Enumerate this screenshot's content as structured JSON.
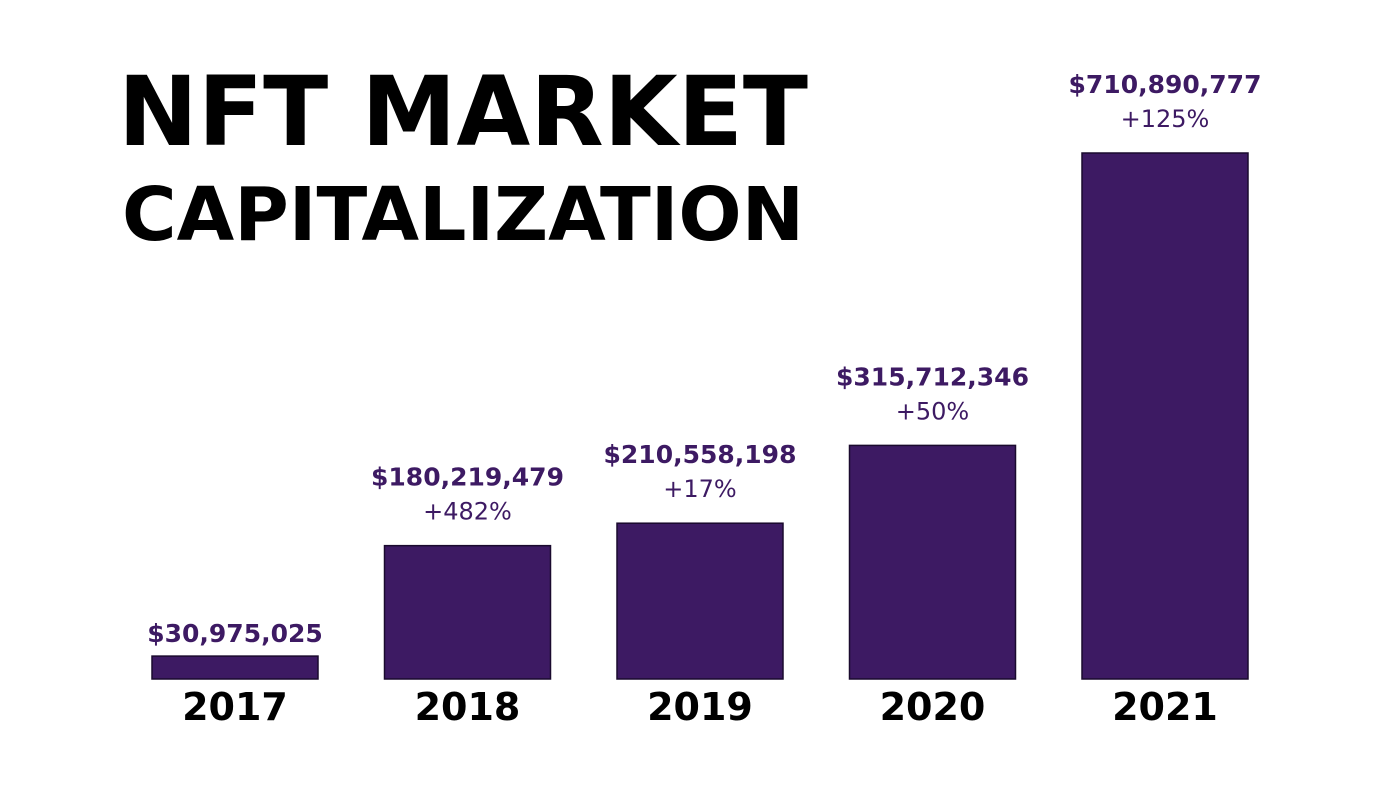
{
  "colors": {
    "bar": "#3d1a63",
    "bar_stroke": "#1a0a2e",
    "value_text": "#3d1a63",
    "change_text": "#3d1a63",
    "title_text": "#000000",
    "background": "#ffffff"
  },
  "chart_data": {
    "type": "bar",
    "title": "NFT MARKET",
    "subtitle": "CAPITALIZATION",
    "xlabel": "",
    "ylabel": "",
    "categories": [
      "2017",
      "2018",
      "2019",
      "2020",
      "2021"
    ],
    "values": [
      30975025,
      180219479,
      210558198,
      315712346,
      710890777
    ],
    "value_labels": [
      "$30,975,025",
      "$180,219,479",
      "$210,558,198",
      "$315,712,346",
      "$710,890,777"
    ],
    "change_labels": [
      "",
      "+482%",
      "+17%",
      "+50%",
      "+125%"
    ],
    "ylim": [
      0,
      710890777
    ],
    "grid": false,
    "legend": "none"
  }
}
